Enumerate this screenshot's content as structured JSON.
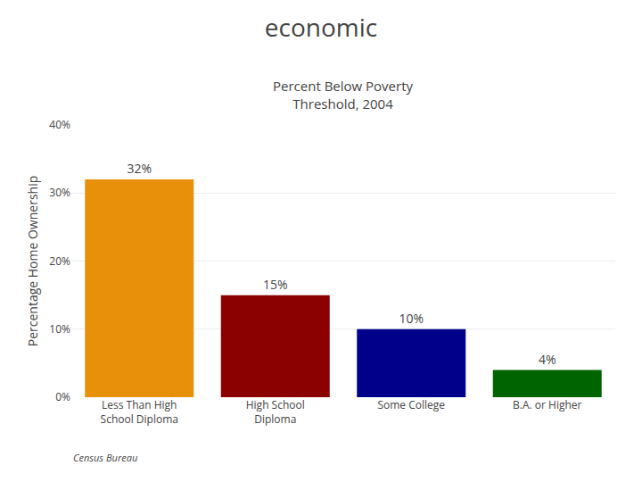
{
  "chart_data": {
    "type": "bar",
    "title": "economic",
    "subtitle": "Percent Below Poverty\nThreshold, 2004",
    "ylabel": "Percentage Home Ownership",
    "annotations": [
      "Census Bureau"
    ],
    "categories": [
      "Less Than High\nSchool Diploma",
      "High School\nDiploma",
      "Some College",
      "B.A. or Higher"
    ],
    "values": [
      32,
      15,
      10,
      4
    ],
    "value_labels": [
      "32%",
      "15%",
      "10%",
      "4%"
    ],
    "data_labels": true,
    "colors": [
      "#E8900A",
      "#8B0000",
      "#00008B",
      "#006400"
    ],
    "ylim": [
      0,
      40
    ],
    "yticks": [
      {
        "value": 0,
        "label": "0%"
      },
      {
        "value": 10,
        "label": "10%"
      },
      {
        "value": 20,
        "label": "20%"
      },
      {
        "value": 30,
        "label": "30%"
      },
      {
        "value": 40,
        "label": "40%"
      }
    ],
    "grid": true
  }
}
